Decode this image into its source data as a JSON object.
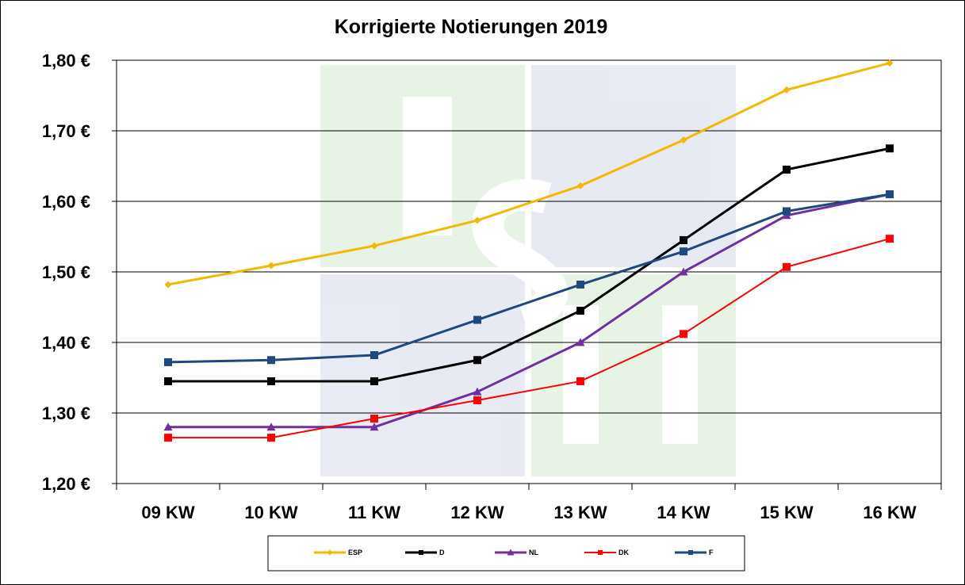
{
  "chart_data": {
    "type": "line",
    "title": "Korrigierte Notierungen 2019",
    "categories": [
      "09 KW",
      "10 KW",
      "11 KW",
      "12 KW",
      "13 KW",
      "14 KW",
      "15 KW",
      "16 KW"
    ],
    "yticks": [
      "1,20 €",
      "1,30 €",
      "1,40 €",
      "1,50 €",
      "1,60 €",
      "1,70 €",
      "1,80 €"
    ],
    "ylim": [
      1.2,
      1.8
    ],
    "grid": true,
    "legend_position": "bottom",
    "series": [
      {
        "name": "ESP",
        "color": "#F5B800",
        "marker": "diamond",
        "width": 3,
        "values": [
          1.482,
          1.509,
          1.537,
          1.573,
          1.622,
          1.687,
          1.758,
          1.796
        ]
      },
      {
        "name": "D",
        "color": "#000000",
        "marker": "square",
        "width": 3,
        "values": [
          1.345,
          1.345,
          1.345,
          1.375,
          1.445,
          1.545,
          1.645,
          1.675
        ]
      },
      {
        "name": "NL",
        "color": "#7030A0",
        "marker": "triangle",
        "width": 3,
        "values": [
          1.28,
          1.28,
          1.28,
          1.33,
          1.4,
          1.5,
          1.58,
          1.61
        ]
      },
      {
        "name": "DK",
        "color": "#FF0000",
        "marker": "square",
        "width": 2,
        "values": [
          1.265,
          1.265,
          1.292,
          1.318,
          1.345,
          1.412,
          1.507,
          1.547
        ]
      },
      {
        "name": "F",
        "color": "#1F497D",
        "marker": "square",
        "width": 3,
        "values": [
          1.372,
          1.375,
          1.382,
          1.432,
          1.482,
          1.529,
          1.586,
          1.61
        ]
      }
    ]
  }
}
